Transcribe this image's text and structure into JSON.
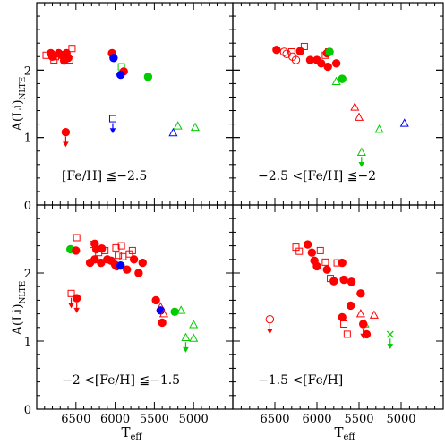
{
  "chart_data": {
    "type": "scatter",
    "ylabel": "A(Li)",
    "ylabel_sub": "NLTE",
    "xlabel": "T",
    "xlabel_sub": "eff",
    "xlim": [
      7000,
      4500
    ],
    "ylim": [
      0,
      3
    ],
    "x_ticks": [
      6500,
      6000,
      5500,
      5000
    ],
    "y_ticks": [
      0,
      1,
      2
    ],
    "colors": {
      "red": "#ff0000",
      "green": "#00cc00",
      "blue": "#0000ff"
    },
    "panels": [
      {
        "label": "[Fe/H] ≦−2.5",
        "points": [
          {
            "x": 6550,
            "y": 2.32,
            "shape": "square",
            "fill": "open",
            "color": "red"
          },
          {
            "x": 6580,
            "y": 2.15,
            "shape": "square",
            "fill": "open",
            "color": "red"
          },
          {
            "x": 6620,
            "y": 2.2,
            "shape": "square",
            "fill": "open",
            "color": "red"
          },
          {
            "x": 6640,
            "y": 2.23,
            "shape": "square",
            "fill": "open",
            "color": "red"
          },
          {
            "x": 6600,
            "y": 2.18,
            "shape": "circle",
            "fill": "filled",
            "color": "red"
          },
          {
            "x": 6620,
            "y": 2.25,
            "shape": "circle",
            "fill": "filled",
            "color": "red"
          },
          {
            "x": 6650,
            "y": 2.14,
            "shape": "circle",
            "fill": "filled",
            "color": "red"
          },
          {
            "x": 6680,
            "y": 2.22,
            "shape": "circle",
            "fill": "filled",
            "color": "red"
          },
          {
            "x": 6720,
            "y": 2.25,
            "shape": "circle",
            "fill": "filled",
            "color": "red"
          },
          {
            "x": 6760,
            "y": 2.2,
            "shape": "square",
            "fill": "open",
            "color": "red"
          },
          {
            "x": 6780,
            "y": 2.15,
            "shape": "square",
            "fill": "open",
            "color": "red"
          },
          {
            "x": 6800,
            "y": 2.2,
            "shape": "circle",
            "fill": "filled",
            "color": "red"
          },
          {
            "x": 6820,
            "y": 2.25,
            "shape": "circle",
            "fill": "filled",
            "color": "red"
          },
          {
            "x": 6880,
            "y": 2.22,
            "shape": "square",
            "fill": "open",
            "color": "red"
          },
          {
            "x": 6040,
            "y": 2.25,
            "shape": "circle",
            "fill": "filled",
            "color": "red"
          },
          {
            "x": 6020,
            "y": 2.18,
            "shape": "circle",
            "fill": "filled",
            "color": "blue"
          },
          {
            "x": 5920,
            "y": 2.05,
            "shape": "square",
            "fill": "open",
            "color": "green"
          },
          {
            "x": 5890,
            "y": 1.98,
            "shape": "circle",
            "fill": "filled",
            "color": "red"
          },
          {
            "x": 5930,
            "y": 1.93,
            "shape": "circle",
            "fill": "filled",
            "color": "blue"
          },
          {
            "x": 5580,
            "y": 1.9,
            "shape": "circle",
            "fill": "filled",
            "color": "green"
          },
          {
            "x": 6630,
            "y": 1.08,
            "shape": "circle",
            "fill": "filled",
            "color": "red",
            "upper_limit": true
          },
          {
            "x": 6030,
            "y": 1.28,
            "shape": "square",
            "fill": "open",
            "color": "blue",
            "upper_limit": true
          },
          {
            "x": 5260,
            "y": 1.07,
            "shape": "triangle",
            "fill": "open",
            "color": "blue"
          },
          {
            "x": 5200,
            "y": 1.17,
            "shape": "triangle",
            "fill": "open",
            "color": "green"
          },
          {
            "x": 4980,
            "y": 1.15,
            "shape": "triangle",
            "fill": "open",
            "color": "green"
          }
        ]
      },
      {
        "label": "−2.5 <[Fe/H] ≦−2",
        "points": [
          {
            "x": 6480,
            "y": 2.3,
            "shape": "circle",
            "fill": "filled",
            "color": "red"
          },
          {
            "x": 6390,
            "y": 2.27,
            "shape": "circle",
            "fill": "open",
            "color": "red"
          },
          {
            "x": 6360,
            "y": 2.24,
            "shape": "circle",
            "fill": "open",
            "color": "red"
          },
          {
            "x": 6290,
            "y": 2.2,
            "shape": "circle",
            "fill": "open",
            "color": "red"
          },
          {
            "x": 6250,
            "y": 2.15,
            "shape": "circle",
            "fill": "open",
            "color": "red"
          },
          {
            "x": 6300,
            "y": 2.27,
            "shape": "square",
            "fill": "open",
            "color": "red"
          },
          {
            "x": 6200,
            "y": 2.28,
            "shape": "circle",
            "fill": "filled",
            "color": "red"
          },
          {
            "x": 6150,
            "y": 2.35,
            "shape": "square",
            "fill": "open",
            "color": "red"
          },
          {
            "x": 6080,
            "y": 2.15,
            "shape": "circle",
            "fill": "filled",
            "color": "red"
          },
          {
            "x": 6000,
            "y": 2.15,
            "shape": "circle",
            "fill": "filled",
            "color": "red"
          },
          {
            "x": 5950,
            "y": 2.1,
            "shape": "circle",
            "fill": "filled",
            "color": "red"
          },
          {
            "x": 5900,
            "y": 2.22,
            "shape": "square",
            "fill": "open",
            "color": "red"
          },
          {
            "x": 5880,
            "y": 2.25,
            "shape": "circle",
            "fill": "filled",
            "color": "red"
          },
          {
            "x": 5860,
            "y": 2.27,
            "shape": "square",
            "fill": "open",
            "color": "red"
          },
          {
            "x": 5850,
            "y": 2.27,
            "shape": "circle",
            "fill": "filled",
            "color": "green"
          },
          {
            "x": 5870,
            "y": 2.05,
            "shape": "circle",
            "fill": "filled",
            "color": "red"
          },
          {
            "x": 5770,
            "y": 2.1,
            "shape": "circle",
            "fill": "filled",
            "color": "red"
          },
          {
            "x": 5700,
            "y": 1.87,
            "shape": "circle",
            "fill": "filled",
            "color": "green"
          },
          {
            "x": 5770,
            "y": 1.83,
            "shape": "triangle",
            "fill": "open",
            "color": "green"
          },
          {
            "x": 5550,
            "y": 1.45,
            "shape": "triangle",
            "fill": "open",
            "color": "red"
          },
          {
            "x": 5500,
            "y": 1.3,
            "shape": "triangle",
            "fill": "open",
            "color": "red"
          },
          {
            "x": 5260,
            "y": 1.12,
            "shape": "triangle",
            "fill": "open",
            "color": "green"
          },
          {
            "x": 4960,
            "y": 1.21,
            "shape": "triangle",
            "fill": "open",
            "color": "blue"
          },
          {
            "x": 5470,
            "y": 0.78,
            "shape": "triangle",
            "fill": "open",
            "color": "green",
            "upper_limit": true
          }
        ]
      },
      {
        "label": "−2 <[Fe/H] ≦−1.5",
        "points": [
          {
            "x": 6570,
            "y": 2.35,
            "shape": "circle",
            "fill": "filled",
            "color": "green"
          },
          {
            "x": 6500,
            "y": 2.33,
            "shape": "circle",
            "fill": "filled",
            "color": "red"
          },
          {
            "x": 6490,
            "y": 2.52,
            "shape": "square",
            "fill": "open",
            "color": "red"
          },
          {
            "x": 6280,
            "y": 2.42,
            "shape": "square",
            "fill": "open",
            "color": "red"
          },
          {
            "x": 6260,
            "y": 2.43,
            "shape": "circle",
            "fill": "filled",
            "color": "red"
          },
          {
            "x": 6240,
            "y": 2.35,
            "shape": "circle",
            "fill": "filled",
            "color": "red"
          },
          {
            "x": 6210,
            "y": 2.3,
            "shape": "square",
            "fill": "open",
            "color": "red"
          },
          {
            "x": 6170,
            "y": 2.36,
            "shape": "circle",
            "fill": "filled",
            "color": "red"
          },
          {
            "x": 6130,
            "y": 2.33,
            "shape": "square",
            "fill": "open",
            "color": "red"
          },
          {
            "x": 6320,
            "y": 2.15,
            "shape": "circle",
            "fill": "filled",
            "color": "red"
          },
          {
            "x": 6260,
            "y": 2.2,
            "shape": "circle",
            "fill": "filled",
            "color": "red"
          },
          {
            "x": 6180,
            "y": 2.15,
            "shape": "circle",
            "fill": "filled",
            "color": "red"
          },
          {
            "x": 6100,
            "y": 2.2,
            "shape": "circle",
            "fill": "filled",
            "color": "red"
          },
          {
            "x": 6050,
            "y": 2.18,
            "shape": "circle",
            "fill": "filled",
            "color": "red"
          },
          {
            "x": 6000,
            "y": 2.12,
            "shape": "circle",
            "fill": "filled",
            "color": "red"
          },
          {
            "x": 5980,
            "y": 2.1,
            "shape": "circle",
            "fill": "filled",
            "color": "red"
          },
          {
            "x": 5930,
            "y": 2.11,
            "shape": "circle",
            "fill": "filled",
            "color": "blue"
          },
          {
            "x": 5990,
            "y": 2.37,
            "shape": "square",
            "fill": "open",
            "color": "red"
          },
          {
            "x": 5920,
            "y": 2.4,
            "shape": "square",
            "fill": "open",
            "color": "red"
          },
          {
            "x": 5960,
            "y": 2.26,
            "shape": "square",
            "fill": "open",
            "color": "red"
          },
          {
            "x": 5900,
            "y": 2.24,
            "shape": "square",
            "fill": "open",
            "color": "red"
          },
          {
            "x": 5820,
            "y": 2.28,
            "shape": "square",
            "fill": "open",
            "color": "red"
          },
          {
            "x": 5780,
            "y": 2.33,
            "shape": "square",
            "fill": "open",
            "color": "red"
          },
          {
            "x": 5760,
            "y": 2.2,
            "shape": "circle",
            "fill": "filled",
            "color": "red"
          },
          {
            "x": 5850,
            "y": 2.05,
            "shape": "circle",
            "fill": "filled",
            "color": "red"
          },
          {
            "x": 5650,
            "y": 2.15,
            "shape": "circle",
            "fill": "filled",
            "color": "red"
          },
          {
            "x": 5700,
            "y": 2.0,
            "shape": "circle",
            "fill": "filled",
            "color": "red"
          },
          {
            "x": 5480,
            "y": 1.6,
            "shape": "circle",
            "fill": "filled",
            "color": "red"
          },
          {
            "x": 5420,
            "y": 1.5,
            "shape": "triangle",
            "fill": "open",
            "color": "red"
          },
          {
            "x": 5420,
            "y": 1.45,
            "shape": "circle",
            "fill": "filled",
            "color": "blue"
          },
          {
            "x": 5380,
            "y": 1.4,
            "shape": "triangle",
            "fill": "open",
            "color": "red"
          },
          {
            "x": 5400,
            "y": 1.27,
            "shape": "circle",
            "fill": "filled",
            "color": "red"
          },
          {
            "x": 5240,
            "y": 1.43,
            "shape": "circle",
            "fill": "filled",
            "color": "green"
          },
          {
            "x": 5160,
            "y": 1.45,
            "shape": "triangle",
            "fill": "open",
            "color": "green"
          },
          {
            "x": 5000,
            "y": 1.24,
            "shape": "triangle",
            "fill": "open",
            "color": "green"
          },
          {
            "x": 5000,
            "y": 1.04,
            "shape": "triangle",
            "fill": "open",
            "color": "green"
          },
          {
            "x": 6560,
            "y": 1.7,
            "shape": "square",
            "fill": "open",
            "color": "red",
            "upper_limit": true
          },
          {
            "x": 6490,
            "y": 1.63,
            "shape": "circle",
            "fill": "filled",
            "color": "red",
            "upper_limit": true
          },
          {
            "x": 5100,
            "y": 1.05,
            "shape": "triangle",
            "fill": "open",
            "color": "green",
            "upper_limit": true
          }
        ]
      },
      {
        "label": "−1.5 <[Fe/H]",
        "points": [
          {
            "x": 6250,
            "y": 2.38,
            "shape": "square",
            "fill": "open",
            "color": "red"
          },
          {
            "x": 6210,
            "y": 2.32,
            "shape": "square",
            "fill": "open",
            "color": "red"
          },
          {
            "x": 6110,
            "y": 2.42,
            "shape": "circle",
            "fill": "filled",
            "color": "red"
          },
          {
            "x": 6060,
            "y": 2.3,
            "shape": "circle",
            "fill": "filled",
            "color": "red"
          },
          {
            "x": 6030,
            "y": 2.18,
            "shape": "circle",
            "fill": "filled",
            "color": "red"
          },
          {
            "x": 6000,
            "y": 2.1,
            "shape": "circle",
            "fill": "filled",
            "color": "red"
          },
          {
            "x": 5960,
            "y": 2.33,
            "shape": "square",
            "fill": "open",
            "color": "red"
          },
          {
            "x": 5900,
            "y": 2.16,
            "shape": "square",
            "fill": "open",
            "color": "red"
          },
          {
            "x": 5880,
            "y": 2.05,
            "shape": "circle",
            "fill": "filled",
            "color": "red"
          },
          {
            "x": 5840,
            "y": 1.92,
            "shape": "square",
            "fill": "open",
            "color": "red"
          },
          {
            "x": 5800,
            "y": 1.88,
            "shape": "circle",
            "fill": "filled",
            "color": "red"
          },
          {
            "x": 5760,
            "y": 2.15,
            "shape": "square",
            "fill": "open",
            "color": "red"
          },
          {
            "x": 5700,
            "y": 2.15,
            "shape": "circle",
            "fill": "filled",
            "color": "red"
          },
          {
            "x": 5680,
            "y": 1.9,
            "shape": "circle",
            "fill": "filled",
            "color": "red"
          },
          {
            "x": 5590,
            "y": 1.87,
            "shape": "circle",
            "fill": "filled",
            "color": "red"
          },
          {
            "x": 5480,
            "y": 1.7,
            "shape": "circle",
            "fill": "filled",
            "color": "red"
          },
          {
            "x": 5600,
            "y": 1.52,
            "shape": "circle",
            "fill": "filled",
            "color": "red"
          },
          {
            "x": 5700,
            "y": 1.35,
            "shape": "circle",
            "fill": "filled",
            "color": "red"
          },
          {
            "x": 5680,
            "y": 1.25,
            "shape": "square",
            "fill": "open",
            "color": "red"
          },
          {
            "x": 5640,
            "y": 1.1,
            "shape": "square",
            "fill": "open",
            "color": "red"
          },
          {
            "x": 5480,
            "y": 1.4,
            "shape": "triangle",
            "fill": "open",
            "color": "red"
          },
          {
            "x": 5430,
            "y": 1.25,
            "shape": "triangle",
            "fill": "open",
            "color": "green"
          },
          {
            "x": 5320,
            "y": 1.38,
            "shape": "triangle",
            "fill": "open",
            "color": "red"
          },
          {
            "x": 5410,
            "y": 1.1,
            "shape": "circle",
            "fill": "filled",
            "color": "red"
          },
          {
            "x": 6560,
            "y": 1.32,
            "shape": "circle",
            "fill": "open",
            "color": "red",
            "upper_limit": true
          },
          {
            "x": 5450,
            "y": 1.25,
            "shape": "circle",
            "fill": "filled",
            "color": "red",
            "upper_limit": true
          },
          {
            "x": 5130,
            "y": 1.1,
            "shape": "cross",
            "fill": "open",
            "color": "green",
            "upper_limit": true
          }
        ]
      }
    ]
  }
}
